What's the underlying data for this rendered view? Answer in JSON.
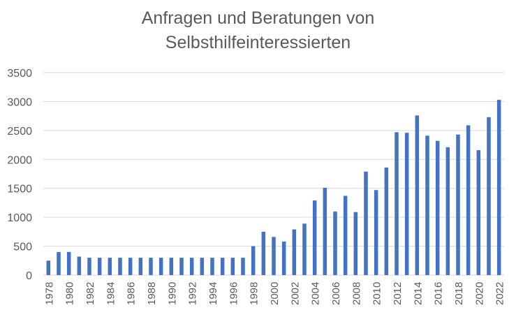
{
  "chart_data": {
    "type": "bar",
    "title_lines": [
      "Anfragen und Beratungen von",
      "Selbsthilfeinteressierten"
    ],
    "xlabel": "",
    "ylabel": "",
    "ylim": [
      0,
      3500
    ],
    "yticks": [
      0,
      500,
      1000,
      1500,
      2000,
      2500,
      3000,
      3500
    ],
    "grid": true,
    "legend": "none",
    "bar_color": "#4472C4",
    "categories": [
      "1978",
      "1979",
      "1980",
      "1981",
      "1982",
      "1983",
      "1984",
      "1985",
      "1986",
      "1987",
      "1988",
      "1989",
      "1990",
      "1991",
      "1992",
      "1993",
      "1994",
      "1995",
      "1996",
      "1997",
      "1998",
      "1999",
      "2000",
      "2001",
      "2002",
      "2003",
      "2004",
      "2005",
      "2006",
      "2007",
      "2008",
      "2009",
      "2010",
      "2011",
      "2012",
      "2013",
      "2014",
      "2015",
      "2016",
      "2017",
      "2018",
      "2019",
      "2020",
      "2021",
      "2022"
    ],
    "x_tick_labels": [
      "1978",
      "1980",
      "1982",
      "1984",
      "1986",
      "1988",
      "1990",
      "1992",
      "1994",
      "1996",
      "1998",
      "2000",
      "2002",
      "2004",
      "2006",
      "2008",
      "2010",
      "2012",
      "2014",
      "2016",
      "2018",
      "2020",
      "2022"
    ],
    "values": [
      250,
      400,
      400,
      320,
      300,
      300,
      300,
      300,
      300,
      300,
      300,
      300,
      300,
      300,
      300,
      300,
      300,
      300,
      300,
      300,
      500,
      750,
      660,
      580,
      790,
      890,
      1290,
      1510,
      1100,
      1370,
      1090,
      1790,
      1470,
      1860,
      2470,
      2460,
      2760,
      2410,
      2320,
      2210,
      2430,
      2590,
      2160,
      2730,
      3030
    ]
  }
}
